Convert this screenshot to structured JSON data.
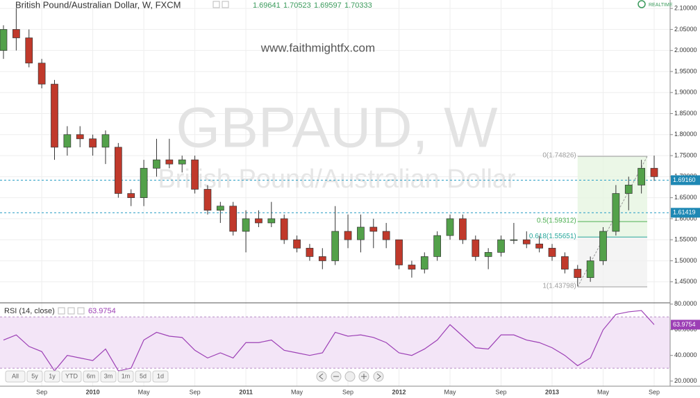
{
  "header": {
    "title": "British Pound/Australian Dollar, W, FXCM",
    "ohlc": [
      1.69641,
      1.70523,
      1.69597,
      1.70333
    ],
    "realtime": "REALTIME"
  },
  "watermark": {
    "symbol": "GBPAUD, W",
    "name": "British Pound/Australian Dollar",
    "url": "www.faithmightfx.com"
  },
  "toolbar": {
    "ranges": [
      "All",
      "5y",
      "1y",
      "YTD",
      "6m",
      "3m",
      "1m",
      "5d",
      "1d"
    ]
  },
  "chart_data": [
    {
      "type": "candlestick",
      "categories": [
        null,
        null,
        null,
        "Sep",
        null,
        null,
        null,
        "2010",
        null,
        null,
        null,
        "May",
        null,
        null,
        null,
        "Sep",
        null,
        null,
        null,
        "2011",
        null,
        null,
        null,
        "May",
        null,
        null,
        null,
        "Sep",
        null,
        null,
        null,
        "2012",
        null,
        null,
        null,
        "May",
        null,
        null,
        null,
        "Sep",
        null,
        null,
        null,
        "2013",
        null,
        null,
        null,
        "May",
        null,
        null,
        null,
        "Sep"
      ],
      "open": [
        2.0,
        2.05,
        2.03,
        1.97,
        1.92,
        1.77,
        1.8,
        1.79,
        1.77,
        1.77,
        1.66,
        1.65,
        1.72,
        1.74,
        1.73,
        1.74,
        1.67,
        1.62,
        1.63,
        1.57,
        1.6,
        1.59,
        1.6,
        1.55,
        1.53,
        1.51,
        1.5,
        1.57,
        1.55,
        1.58,
        1.57,
        1.55,
        1.49,
        1.48,
        1.51,
        1.56,
        1.6,
        1.55,
        1.51,
        1.52,
        1.55,
        1.55,
        1.54,
        1.53,
        1.51,
        1.48,
        1.46,
        1.5,
        1.57,
        1.66,
        1.68,
        1.72
      ],
      "high": [
        2.06,
        2.1,
        2.05,
        1.98,
        1.93,
        1.82,
        1.82,
        1.8,
        1.81,
        1.78,
        1.67,
        1.74,
        1.79,
        1.79,
        1.75,
        1.75,
        1.68,
        1.64,
        1.64,
        1.62,
        1.62,
        1.64,
        1.61,
        1.56,
        1.54,
        1.53,
        1.63,
        1.61,
        1.61,
        1.6,
        1.59,
        1.55,
        1.5,
        1.52,
        1.57,
        1.61,
        1.61,
        1.56,
        1.53,
        1.56,
        1.59,
        1.57,
        1.56,
        1.54,
        1.52,
        1.49,
        1.51,
        1.58,
        1.68,
        1.7,
        1.74,
        1.75
      ],
      "low": [
        1.98,
        2.0,
        1.96,
        1.91,
        1.74,
        1.75,
        1.77,
        1.75,
        1.73,
        1.65,
        1.63,
        1.63,
        1.7,
        1.72,
        1.71,
        1.66,
        1.61,
        1.59,
        1.56,
        1.52,
        1.58,
        1.58,
        1.54,
        1.52,
        1.5,
        1.48,
        1.49,
        1.53,
        1.52,
        1.53,
        1.53,
        1.48,
        1.46,
        1.47,
        1.5,
        1.55,
        1.54,
        1.5,
        1.48,
        1.51,
        1.54,
        1.53,
        1.52,
        1.5,
        1.47,
        1.44,
        1.45,
        1.49,
        1.56,
        1.62,
        1.66,
        1.69
      ],
      "close": [
        2.05,
        2.03,
        1.97,
        1.92,
        1.77,
        1.8,
        1.79,
        1.77,
        1.8,
        1.66,
        1.65,
        1.72,
        1.74,
        1.73,
        1.74,
        1.67,
        1.62,
        1.63,
        1.57,
        1.6,
        1.59,
        1.6,
        1.55,
        1.53,
        1.51,
        1.5,
        1.57,
        1.55,
        1.58,
        1.57,
        1.55,
        1.49,
        1.48,
        1.51,
        1.56,
        1.6,
        1.55,
        1.51,
        1.52,
        1.55,
        1.55,
        1.54,
        1.53,
        1.51,
        1.48,
        1.46,
        1.5,
        1.57,
        1.66,
        1.68,
        1.72,
        1.7
      ],
      "up_color": "#53a14a",
      "down_color": "#c0392b",
      "ylim": [
        1.4,
        2.12
      ],
      "yticks": [
        {
          "value": 1.45,
          "label": "1.45000"
        },
        {
          "value": 1.5,
          "label": "1.50000"
        },
        {
          "value": 1.55,
          "label": "1.55000"
        },
        {
          "value": 1.6,
          "label": "1.60000"
        },
        {
          "value": 1.65,
          "label": "1.65000"
        },
        {
          "value": 1.7,
          "label": "1.70000"
        },
        {
          "value": 1.75,
          "label": "1.75000"
        },
        {
          "value": 1.8,
          "label": "1.80000"
        },
        {
          "value": 1.85,
          "label": "1.85000"
        },
        {
          "value": 1.9,
          "label": "1.90000"
        },
        {
          "value": 1.95,
          "label": "1.95000"
        },
        {
          "value": 2.0,
          "label": "2.00000"
        },
        {
          "value": 2.05,
          "label": "2.05000"
        },
        {
          "value": 2.1,
          "label": "2.10000"
        }
      ],
      "grid": true,
      "hlines": [
        {
          "value": 1.6916,
          "label": "1.69160",
          "color": "#3aa6c9"
        },
        {
          "value": 1.61419,
          "label": "1.61419",
          "color": "#3aa6c9"
        }
      ],
      "fib": [
        {
          "value": 1.74826,
          "label": "0(1.74826)",
          "color": "#9e9e9e"
        },
        {
          "value": 1.59312,
          "label": "0.5(1.59312)",
          "color": "#4caf50"
        },
        {
          "value": 1.55651,
          "label": "0.618(1.55651)",
          "color": "#26a69a"
        },
        {
          "value": 1.43798,
          "label": "1(1.43798)",
          "color": "#9e9e9e"
        }
      ]
    },
    {
      "type": "line",
      "title": "RSI (14, close)",
      "last_value": 63.9754,
      "color": "#9c3fb5",
      "values": [
        52,
        56,
        47,
        43,
        28,
        40,
        38,
        36,
        45,
        28,
        30,
        52,
        58,
        55,
        54,
        44,
        38,
        42,
        38,
        50,
        50,
        52,
        44,
        42,
        40,
        42,
        58,
        55,
        56,
        54,
        50,
        42,
        40,
        45,
        52,
        64,
        55,
        46,
        45,
        56,
        56,
        52,
        50,
        46,
        40,
        32,
        38,
        60,
        72,
        74,
        75,
        64
      ],
      "ylim": [
        16,
        81
      ],
      "yticks": [
        {
          "value": 20,
          "label": "20.0000"
        },
        {
          "value": 40,
          "label": "40.0000"
        },
        {
          "value": 60,
          "label": "60.0000"
        },
        {
          "value": 80,
          "label": "80.0000"
        }
      ],
      "band": [
        30,
        70
      ]
    }
  ]
}
